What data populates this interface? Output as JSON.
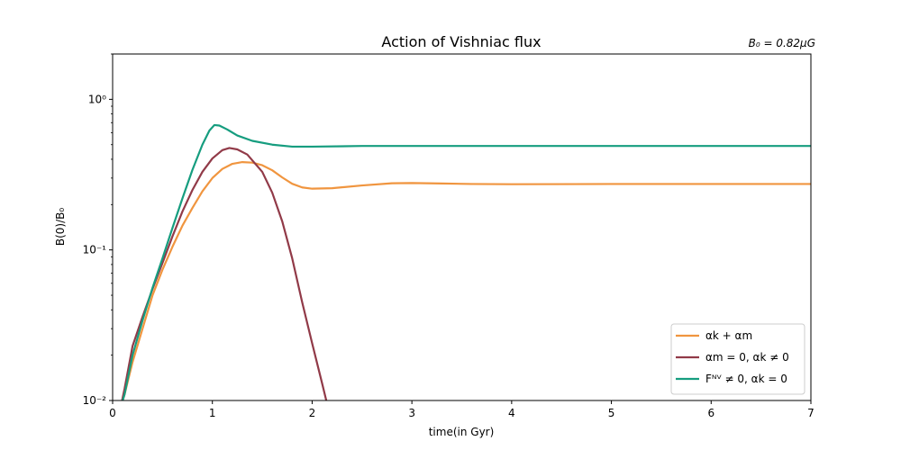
{
  "chart_data": {
    "type": "line",
    "title": "Action of Vishniac flux",
    "annotation": "B₀ = 0.82μG",
    "xlabel": "time(in Gyr)",
    "ylabel": "B(0)/B₀",
    "xlim": [
      0,
      7
    ],
    "ylim": [
      0.01,
      2
    ],
    "yscale": "log",
    "grid": false,
    "legend_position": "lower-right",
    "x_ticks": [
      0,
      1,
      2,
      3,
      4,
      5,
      6,
      7
    ],
    "x_tick_labels": [
      "0",
      "1",
      "2",
      "3",
      "4",
      "5",
      "6",
      "7"
    ],
    "y_ticks": [
      0.01,
      0.1,
      1
    ],
    "y_tick_labels": [
      "10⁻²",
      "10⁻¹",
      "10⁰"
    ],
    "series": [
      {
        "name": "αk + αm",
        "color": "#f0953f",
        "points": [
          [
            0.08,
            0.009
          ],
          [
            0.12,
            0.011
          ],
          [
            0.2,
            0.018
          ],
          [
            0.3,
            0.03
          ],
          [
            0.4,
            0.05
          ],
          [
            0.5,
            0.074
          ],
          [
            0.6,
            0.105
          ],
          [
            0.7,
            0.145
          ],
          [
            0.8,
            0.19
          ],
          [
            0.9,
            0.245
          ],
          [
            1.0,
            0.3
          ],
          [
            1.1,
            0.345
          ],
          [
            1.2,
            0.373
          ],
          [
            1.3,
            0.383
          ],
          [
            1.4,
            0.38
          ],
          [
            1.5,
            0.365
          ],
          [
            1.6,
            0.338
          ],
          [
            1.7,
            0.303
          ],
          [
            1.8,
            0.275
          ],
          [
            1.9,
            0.26
          ],
          [
            2.0,
            0.255
          ],
          [
            2.2,
            0.257
          ],
          [
            2.5,
            0.268
          ],
          [
            2.8,
            0.277
          ],
          [
            3.0,
            0.278
          ],
          [
            3.3,
            0.276
          ],
          [
            3.6,
            0.274
          ],
          [
            4.0,
            0.273
          ],
          [
            5.0,
            0.274
          ],
          [
            6.0,
            0.274
          ],
          [
            7.0,
            0.274
          ]
        ]
      },
      {
        "name": "αm = 0, αk ≠ 0",
        "color": "#913a48",
        "points": [
          [
            0.08,
            0.009
          ],
          [
            0.12,
            0.012
          ],
          [
            0.2,
            0.023
          ],
          [
            0.3,
            0.036
          ],
          [
            0.4,
            0.055
          ],
          [
            0.5,
            0.082
          ],
          [
            0.6,
            0.123
          ],
          [
            0.7,
            0.18
          ],
          [
            0.8,
            0.25
          ],
          [
            0.9,
            0.33
          ],
          [
            1.0,
            0.405
          ],
          [
            1.1,
            0.46
          ],
          [
            1.17,
            0.475
          ],
          [
            1.25,
            0.465
          ],
          [
            1.35,
            0.43
          ],
          [
            1.5,
            0.33
          ],
          [
            1.6,
            0.24
          ],
          [
            1.7,
            0.155
          ],
          [
            1.8,
            0.088
          ],
          [
            1.9,
            0.045
          ],
          [
            2.0,
            0.024
          ],
          [
            2.1,
            0.013
          ],
          [
            2.15,
            0.0095
          ]
        ]
      },
      {
        "name": "Fᴺⱽ ≠ 0, αk = 0",
        "color": "#169d7f",
        "points": [
          [
            0.08,
            0.009
          ],
          [
            0.12,
            0.011
          ],
          [
            0.2,
            0.02
          ],
          [
            0.3,
            0.034
          ],
          [
            0.4,
            0.056
          ],
          [
            0.5,
            0.088
          ],
          [
            0.6,
            0.14
          ],
          [
            0.7,
            0.22
          ],
          [
            0.8,
            0.34
          ],
          [
            0.9,
            0.5
          ],
          [
            0.97,
            0.62
          ],
          [
            1.02,
            0.675
          ],
          [
            1.07,
            0.67
          ],
          [
            1.15,
            0.63
          ],
          [
            1.25,
            0.575
          ],
          [
            1.4,
            0.53
          ],
          [
            1.6,
            0.5
          ],
          [
            1.8,
            0.485
          ],
          [
            2.0,
            0.485
          ],
          [
            2.5,
            0.49
          ],
          [
            3.0,
            0.49
          ],
          [
            4.0,
            0.49
          ],
          [
            5.0,
            0.49
          ],
          [
            6.0,
            0.49
          ],
          [
            7.0,
            0.49
          ]
        ]
      }
    ]
  }
}
